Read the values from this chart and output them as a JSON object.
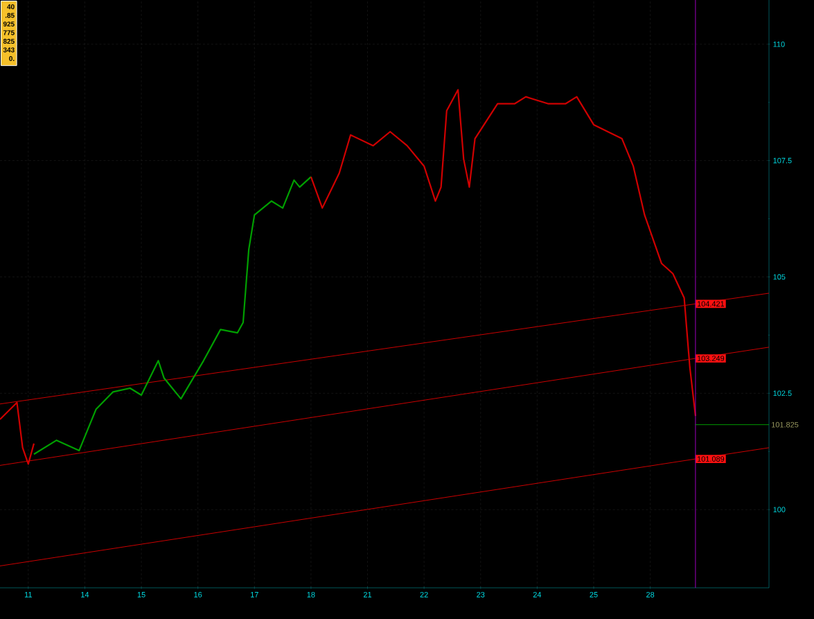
{
  "chart_data": {
    "type": "line",
    "categories": [
      null,
      null,
      null,
      null,
      null,
      "11",
      null,
      null,
      null,
      null,
      null,
      null,
      null,
      null,
      null,
      "14",
      null,
      null,
      null,
      null,
      null,
      null,
      null,
      null,
      null,
      "15",
      null,
      null,
      null,
      null,
      null,
      null,
      null,
      null,
      null,
      "16",
      null,
      null,
      null,
      null,
      null,
      null,
      null,
      null,
      null,
      "17",
      null,
      null,
      null,
      null,
      null,
      null,
      null,
      null,
      null,
      "18",
      null,
      null,
      null,
      null,
      null,
      null,
      null,
      null,
      null,
      "21",
      null,
      null,
      null,
      null,
      null,
      null,
      null,
      null,
      null,
      "22",
      null,
      null,
      null,
      null,
      null,
      null,
      null,
      null,
      null,
      "23",
      null,
      null,
      null,
      null,
      null,
      null,
      null,
      null,
      null,
      "24",
      null,
      null,
      null,
      null,
      null,
      null,
      null,
      null,
      null,
      "25",
      null,
      null,
      null,
      null,
      null,
      null,
      null,
      null,
      null,
      "28",
      null,
      null,
      null,
      null,
      null,
      null,
      null,
      null,
      null,
      null,
      null,
      null,
      null,
      null,
      null,
      null,
      null,
      null,
      null,
      null,
      null
    ],
    "ylim": [
      98.32,
      110.95
    ],
    "yticks": [
      100,
      102.5,
      105,
      107.5,
      110
    ],
    "grid": true,
    "series": [
      {
        "color": "#ff0000",
        "values": [
          102.27,
          null,
          null,
          null,
          null,
          null,
          null,
          null,
          null,
          null,
          null,
          null,
          null,
          null,
          null,
          null,
          null,
          null,
          null,
          null,
          null,
          null,
          null,
          null,
          null,
          null,
          null,
          null,
          null,
          null,
          null,
          null,
          null,
          null,
          null,
          null,
          null,
          null,
          null,
          null,
          null,
          null,
          null,
          null,
          null,
          null,
          null,
          null,
          null,
          null,
          null,
          null,
          null,
          null,
          null,
          null,
          null,
          null,
          null,
          null,
          null,
          null,
          null,
          null,
          null,
          null,
          null,
          null,
          null,
          null,
          null,
          null,
          null,
          null,
          null,
          null,
          null,
          null,
          null,
          null,
          null,
          null,
          null,
          null,
          null,
          null,
          null,
          null,
          null,
          null,
          null,
          null,
          null,
          null,
          null,
          null,
          null,
          null,
          null,
          null,
          null,
          null,
          null,
          null,
          null,
          null,
          null,
          null,
          null,
          null,
          null,
          null,
          null,
          null,
          null,
          null,
          null,
          null,
          null,
          null,
          null,
          null,
          null,
          104.421,
          null,
          null,
          null,
          null,
          null,
          null,
          null,
          null,
          null,
          null,
          null,
          null,
          104.65
        ],
        "value_labels": [
          null,
          null,
          null,
          null,
          null,
          null,
          null,
          null,
          null,
          null,
          null,
          null,
          null,
          null,
          null,
          null,
          null,
          null,
          null,
          null,
          null,
          null,
          null,
          null,
          null,
          null,
          null,
          null,
          null,
          null,
          null,
          null,
          null,
          null,
          null,
          null,
          null,
          null,
          null,
          null,
          null,
          null,
          null,
          null,
          null,
          null,
          null,
          null,
          null,
          null,
          null,
          null,
          null,
          null,
          null,
          null,
          null,
          null,
          null,
          null,
          null,
          null,
          null,
          null,
          null,
          null,
          null,
          null,
          null,
          null,
          null,
          null,
          null,
          null,
          null,
          null,
          null,
          null,
          null,
          null,
          null,
          null,
          null,
          null,
          null,
          null,
          null,
          null,
          null,
          null,
          null,
          null,
          null,
          null,
          null,
          null,
          null,
          null,
          null,
          null,
          null,
          null,
          null,
          null,
          null,
          null,
          null,
          null,
          null,
          null,
          null,
          null,
          null,
          null,
          null,
          null,
          null,
          null,
          null,
          null,
          null,
          null,
          null,
          "104.421",
          null,
          null,
          null,
          null,
          null,
          null,
          null,
          null,
          null,
          null,
          null,
          null,
          null
        ]
      },
      {
        "color": "#ff0000",
        "values": [
          100.95,
          null,
          null,
          null,
          null,
          null,
          null,
          null,
          null,
          null,
          null,
          null,
          null,
          null,
          null,
          null,
          null,
          null,
          null,
          null,
          null,
          null,
          null,
          null,
          null,
          null,
          null,
          null,
          null,
          null,
          null,
          null,
          null,
          null,
          null,
          null,
          null,
          null,
          null,
          null,
          null,
          null,
          null,
          null,
          null,
          null,
          null,
          null,
          null,
          null,
          null,
          null,
          null,
          null,
          null,
          null,
          null,
          null,
          null,
          null,
          null,
          null,
          null,
          null,
          null,
          null,
          null,
          null,
          null,
          null,
          null,
          null,
          null,
          null,
          null,
          null,
          null,
          null,
          null,
          null,
          null,
          null,
          null,
          null,
          null,
          null,
          null,
          null,
          null,
          null,
          null,
          null,
          null,
          null,
          null,
          null,
          null,
          null,
          null,
          null,
          null,
          null,
          null,
          null,
          null,
          null,
          null,
          null,
          null,
          null,
          null,
          null,
          null,
          null,
          null,
          null,
          null,
          null,
          null,
          null,
          null,
          null,
          null,
          103.249,
          null,
          null,
          null,
          null,
          null,
          null,
          null,
          null,
          null,
          null,
          null,
          null,
          103.49
        ],
        "value_labels": [
          null,
          null,
          null,
          null,
          null,
          null,
          null,
          null,
          null,
          null,
          null,
          null,
          null,
          null,
          null,
          null,
          null,
          null,
          null,
          null,
          null,
          null,
          null,
          null,
          null,
          null,
          null,
          null,
          null,
          null,
          null,
          null,
          null,
          null,
          null,
          null,
          null,
          null,
          null,
          null,
          null,
          null,
          null,
          null,
          null,
          null,
          null,
          null,
          null,
          null,
          null,
          null,
          null,
          null,
          null,
          null,
          null,
          null,
          null,
          null,
          null,
          null,
          null,
          null,
          null,
          null,
          null,
          null,
          null,
          null,
          null,
          null,
          null,
          null,
          null,
          null,
          null,
          null,
          null,
          null,
          null,
          null,
          null,
          null,
          null,
          null,
          null,
          null,
          null,
          null,
          null,
          null,
          null,
          null,
          null,
          null,
          null,
          null,
          null,
          null,
          null,
          null,
          null,
          null,
          null,
          null,
          null,
          null,
          null,
          null,
          null,
          null,
          null,
          null,
          null,
          null,
          null,
          null,
          null,
          null,
          null,
          null,
          null,
          "103.249",
          null,
          null,
          null,
          null,
          null,
          null,
          null,
          null,
          null,
          null,
          null,
          null,
          null
        ]
      },
      {
        "color": "#ff0000",
        "values": [
          98.79,
          null,
          null,
          null,
          null,
          null,
          null,
          null,
          null,
          null,
          null,
          null,
          null,
          null,
          null,
          null,
          null,
          null,
          null,
          null,
          null,
          null,
          null,
          null,
          null,
          null,
          null,
          null,
          null,
          null,
          null,
          null,
          null,
          null,
          null,
          null,
          null,
          null,
          null,
          null,
          null,
          null,
          null,
          null,
          null,
          null,
          null,
          null,
          null,
          null,
          null,
          null,
          null,
          null,
          null,
          null,
          null,
          null,
          null,
          null,
          null,
          null,
          null,
          null,
          null,
          null,
          null,
          null,
          null,
          null,
          null,
          null,
          null,
          null,
          null,
          null,
          null,
          null,
          null,
          null,
          null,
          null,
          null,
          null,
          null,
          null,
          null,
          null,
          null,
          null,
          null,
          null,
          null,
          null,
          null,
          null,
          null,
          null,
          null,
          null,
          null,
          null,
          null,
          null,
          null,
          null,
          null,
          null,
          null,
          null,
          null,
          null,
          null,
          null,
          null,
          null,
          null,
          null,
          null,
          null,
          null,
          null,
          null,
          101.089,
          null,
          null,
          null,
          null,
          null,
          null,
          null,
          null,
          null,
          null,
          null,
          null,
          101.33
        ],
        "value_labels": [
          null,
          null,
          null,
          null,
          null,
          null,
          null,
          null,
          null,
          null,
          null,
          null,
          null,
          null,
          null,
          null,
          null,
          null,
          null,
          null,
          null,
          null,
          null,
          null,
          null,
          null,
          null,
          null,
          null,
          null,
          null,
          null,
          null,
          null,
          null,
          null,
          null,
          null,
          null,
          null,
          null,
          null,
          null,
          null,
          null,
          null,
          null,
          null,
          null,
          null,
          null,
          null,
          null,
          null,
          null,
          null,
          null,
          null,
          null,
          null,
          null,
          null,
          null,
          null,
          null,
          null,
          null,
          null,
          null,
          null,
          null,
          null,
          null,
          null,
          null,
          null,
          null,
          null,
          null,
          null,
          null,
          null,
          null,
          null,
          null,
          null,
          null,
          null,
          null,
          null,
          null,
          null,
          null,
          null,
          null,
          null,
          null,
          null,
          null,
          null,
          null,
          null,
          null,
          null,
          null,
          null,
          null,
          null,
          null,
          null,
          null,
          null,
          null,
          null,
          null,
          null,
          null,
          null,
          null,
          null,
          null,
          null,
          null,
          "101.089",
          null,
          null,
          null,
          null,
          null,
          null,
          null,
          null,
          null,
          null,
          null,
          null,
          null
        ]
      },
      {
        "color": "#00a000",
        "values": [
          null,
          null,
          null,
          null,
          null,
          null,
          101.19,
          null,
          null,
          null,
          101.49,
          null,
          null,
          null,
          101.27,
          null,
          null,
          102.16,
          null,
          null,
          102.53,
          null,
          null,
          102.61,
          null,
          102.46,
          null,
          null,
          103.2,
          102.83,
          null,
          null,
          102.38,
          null,
          null,
          null,
          103.2,
          null,
          null,
          103.87,
          null,
          null,
          103.8,
          104.02,
          105.59,
          106.33,
          null,
          null,
          106.63,
          null,
          106.48,
          null,
          107.08,
          106.93,
          null,
          107.15,
          null,
          null,
          null,
          null,
          null,
          null,
          null,
          null,
          null,
          null,
          null,
          null,
          null,
          null,
          null,
          null,
          null,
          null,
          null,
          null,
          null,
          null,
          null,
          null,
          null,
          null,
          null,
          null,
          null,
          null,
          null,
          null,
          null,
          null,
          null,
          null,
          null,
          null,
          null,
          null,
          null,
          null,
          null,
          null,
          null,
          null,
          null,
          null,
          null,
          null,
          null,
          null,
          null,
          null,
          null,
          null,
          null,
          null,
          null,
          null,
          null,
          null,
          null,
          null,
          null,
          null,
          null,
          null,
          null,
          null,
          null,
          null,
          null,
          null,
          null,
          null,
          null,
          null,
          null,
          null,
          null
        ]
      },
      {
        "color": "#d00000",
        "values": [
          101.94,
          null,
          null,
          102.3,
          101.33,
          100.98,
          101.42,
          null,
          null,
          null,
          null,
          null,
          null,
          null,
          null,
          null,
          null,
          null,
          null,
          null,
          null,
          null,
          null,
          null,
          null,
          null,
          null,
          null,
          null,
          null,
          null,
          null,
          null,
          null,
          null,
          null,
          null,
          null,
          null,
          null,
          null,
          null,
          null,
          null,
          null,
          null,
          null,
          null,
          null,
          null,
          null,
          null,
          null,
          null,
          null,
          null,
          null,
          null,
          null,
          null,
          null,
          null,
          null,
          null,
          null,
          null,
          null,
          null,
          null,
          null,
          null,
          null,
          null,
          null,
          null,
          null,
          null,
          null,
          null,
          null,
          null,
          null,
          null,
          null,
          null,
          null,
          null,
          null,
          null,
          null,
          null,
          null,
          null,
          null,
          null,
          null,
          null,
          null,
          null,
          null,
          null,
          null,
          null,
          null,
          null,
          null,
          null,
          null,
          null,
          null,
          null,
          null,
          null,
          null,
          null,
          null,
          null,
          null,
          null,
          null,
          null,
          null,
          null,
          null,
          null,
          null,
          null,
          null,
          null,
          null,
          null,
          null,
          null,
          null,
          null,
          null,
          null
        ]
      },
      {
        "color": "#d00000",
        "values": [
          null,
          null,
          null,
          null,
          null,
          null,
          null,
          null,
          null,
          null,
          null,
          null,
          null,
          null,
          null,
          null,
          null,
          null,
          null,
          null,
          null,
          null,
          null,
          null,
          null,
          null,
          null,
          null,
          null,
          null,
          null,
          null,
          null,
          null,
          null,
          null,
          null,
          null,
          null,
          null,
          null,
          null,
          null,
          null,
          null,
          null,
          null,
          null,
          null,
          null,
          null,
          null,
          null,
          null,
          null,
          107.15,
          null,
          106.48,
          null,
          null,
          107.23,
          null,
          108.05,
          null,
          null,
          null,
          107.82,
          null,
          null,
          108.12,
          null,
          null,
          107.82,
          null,
          null,
          107.38,
          null,
          106.63,
          106.93,
          108.57,
          null,
          109.02,
          107.53,
          106.93,
          107.97,
          null,
          null,
          null,
          108.72,
          null,
          null,
          108.72,
          null,
          108.87,
          null,
          null,
          null,
          108.72,
          null,
          null,
          108.72,
          null,
          108.87,
          null,
          null,
          108.27,
          null,
          null,
          null,
          null,
          107.97,
          null,
          107.38,
          null,
          106.33,
          null,
          null,
          105.29,
          null,
          105.07,
          null,
          104.55,
          103.06,
          102.01,
          null,
          null,
          null,
          null,
          null,
          null,
          null,
          null,
          null,
          null,
          null,
          null,
          null
        ]
      }
    ],
    "ref_lines": [
      {
        "axis": "y",
        "value": 101.825,
        "label": "101.825",
        "color": "#00c000"
      }
    ],
    "annotations": [
      "40",
      ".85",
      "925",
      "775",
      "825",
      "343",
      "0."
    ]
  }
}
